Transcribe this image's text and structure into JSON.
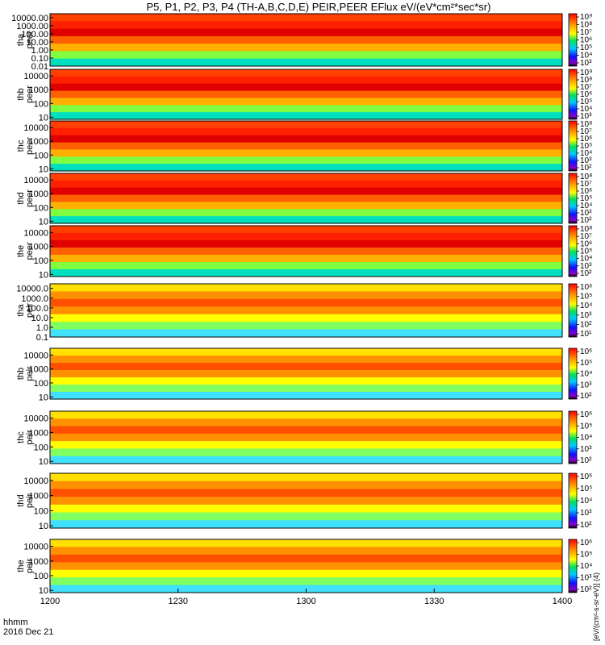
{
  "chart_data": {
    "type": "heatmap",
    "title": "P5, P1, P2, P3, P4 (TH-A,B,C,D,E) PEIR,PEER EFlux eV/(eV*cm²*sec*sr)",
    "time_label": "hhmm",
    "date_label": "2016 Dec 21",
    "x_ticks": [
      "1200",
      "1230",
      "1300",
      "1330",
      "1400"
    ],
    "x_range_hhmm": [
      "1200",
      "1400"
    ],
    "colorbar_label": "[eV/(cm²-s-sr-eV)] (4)",
    "panels": [
      {
        "probe": "tha",
        "species": "peer",
        "yticks": [
          "10000.00",
          "1000.00",
          "100.00",
          "10.00",
          "1.00",
          "0.10",
          "0.01"
        ],
        "ylim": [
          0.01,
          30000
        ],
        "colorbar_ticks": [
          "10⁹",
          "10⁸",
          "10⁷",
          "10⁶",
          "10⁵",
          "10⁴",
          "10³"
        ]
      },
      {
        "probe": "thb",
        "species": "peer",
        "yticks": [
          "10000",
          "1000",
          "100",
          "10"
        ],
        "ylim": [
          7,
          30000
        ],
        "colorbar_ticks": [
          "10⁹",
          "10⁸",
          "10⁷",
          "10⁶",
          "10⁵",
          "10⁴",
          "10³"
        ]
      },
      {
        "probe": "thc",
        "species": "peer",
        "yticks": [
          "10000",
          "1000",
          "100",
          "10"
        ],
        "ylim": [
          7,
          30000
        ],
        "colorbar_ticks": [
          "10⁸",
          "10⁷",
          "10⁶",
          "10⁵",
          "10⁴",
          "10³",
          "10²"
        ]
      },
      {
        "probe": "thd",
        "species": "peer",
        "yticks": [
          "10000",
          "1000",
          "100",
          "10"
        ],
        "ylim": [
          7,
          30000
        ],
        "colorbar_ticks": [
          "10⁸",
          "10⁷",
          "10⁶",
          "10⁵",
          "10⁴",
          "10³",
          "10²"
        ]
      },
      {
        "probe": "the",
        "species": "peer",
        "yticks": [
          "10000",
          "1000",
          "100",
          "10"
        ],
        "ylim": [
          7,
          30000
        ],
        "colorbar_ticks": [
          "10⁸",
          "10⁷",
          "10⁶",
          "10⁵",
          "10⁴",
          "10³",
          "10²"
        ]
      },
      {
        "probe": "tha",
        "species": "peir",
        "yticks": [
          "10000.0",
          "1000.0",
          "100.0",
          "10.0",
          "1.0",
          "0.1"
        ],
        "ylim": [
          0.1,
          30000
        ],
        "colorbar_ticks": [
          "10⁶",
          "10⁵",
          "10⁴",
          "10³",
          "10²",
          "10¹"
        ]
      },
      {
        "probe": "thb",
        "species": "peir",
        "yticks": [
          "10000",
          "1000",
          "100",
          "10"
        ],
        "ylim": [
          7,
          30000
        ],
        "colorbar_ticks": [
          "10⁶",
          "10⁵",
          "10⁴",
          "10³",
          "10²"
        ]
      },
      {
        "probe": "thc",
        "species": "peir",
        "yticks": [
          "10000",
          "1000",
          "100",
          "10"
        ],
        "ylim": [
          7,
          30000
        ],
        "colorbar_ticks": [
          "10⁶",
          "10⁵",
          "10⁴",
          "10³",
          "10²"
        ]
      },
      {
        "probe": "thd",
        "species": "peir",
        "yticks": [
          "10000",
          "1000",
          "100",
          "10"
        ],
        "ylim": [
          7,
          30000
        ],
        "colorbar_ticks": [
          "10⁶",
          "10⁵",
          "10⁴",
          "10³",
          "10²"
        ]
      },
      {
        "probe": "the",
        "species": "peir",
        "yticks": [
          "10000",
          "1000",
          "100",
          "10"
        ],
        "ylim": [
          7,
          30000
        ],
        "colorbar_ticks": [
          "10⁶",
          "10⁵",
          "10⁴",
          "10³",
          "10²"
        ]
      }
    ]
  }
}
